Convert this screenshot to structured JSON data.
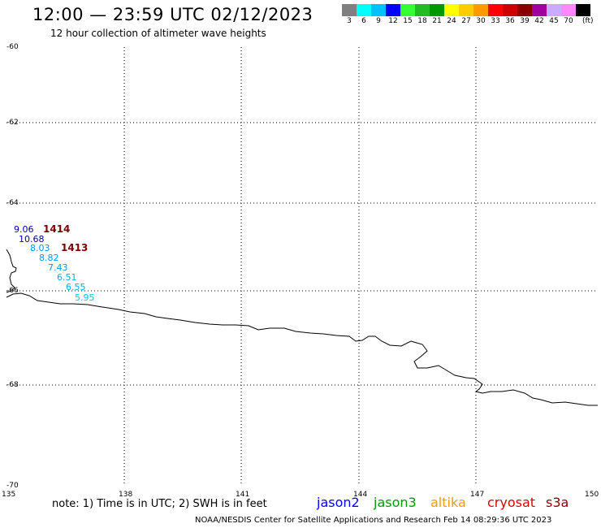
{
  "title": "12:00 — 23:59 UTC 02/12/2023",
  "subtitle": "12 hour collection of altimeter wave heights",
  "colorbar": {
    "colors": [
      "#7f7f7f",
      "#00ffff",
      "#00c0ff",
      "#0000ff",
      "#33ff33",
      "#22bb22",
      "#009900",
      "#ffff00",
      "#ffcc00",
      "#ff9900",
      "#ff0000",
      "#cc0000",
      "#880000",
      "#a000a0",
      "#ccaaff",
      "#ff88ff",
      "#000000"
    ],
    "labels": [
      "3",
      "6",
      "9",
      "12",
      "15",
      "18",
      "21",
      "24",
      "27",
      "30",
      "33",
      "36",
      "39",
      "42",
      "45",
      "70"
    ],
    "unit": "(ft)"
  },
  "axes": {
    "lat_labels": [
      "-60",
      "-62",
      "-64",
      "-66",
      "-68",
      "-70"
    ],
    "lon_labels": [
      "135",
      "138",
      "141",
      "144",
      "147",
      "150"
    ]
  },
  "observations": [
    {
      "value": "9.06",
      "color": "#0000aa"
    },
    {
      "value": "10.68",
      "color": "#0000aa"
    },
    {
      "value": "8.03",
      "color": "#0099ee"
    },
    {
      "value": "8.82",
      "color": "#0099ee"
    },
    {
      "value": "7.43",
      "color": "#0099ee"
    },
    {
      "value": "6.51",
      "color": "#00b0dd"
    },
    {
      "value": "6.55",
      "color": "#00b0dd"
    },
    {
      "value": "5.95",
      "color": "#00ccee"
    }
  ],
  "time_labels": [
    "1414",
    "1413"
  ],
  "note": "note:  1) Time is in UTC;  2) SWH is in feet",
  "satellites": [
    {
      "name": "jason2",
      "color": "#0000ff"
    },
    {
      "name": "jason3",
      "color": "#009900"
    },
    {
      "name": "altika",
      "color": "#ff9900"
    },
    {
      "name": "cryosat",
      "color": "#dd0000"
    },
    {
      "name": "s3a",
      "color": "#880000"
    }
  ],
  "credit": "NOAA/NESDIS Center for Satellite Applications and Research     Feb 14 08:29:36 UTC 2023"
}
